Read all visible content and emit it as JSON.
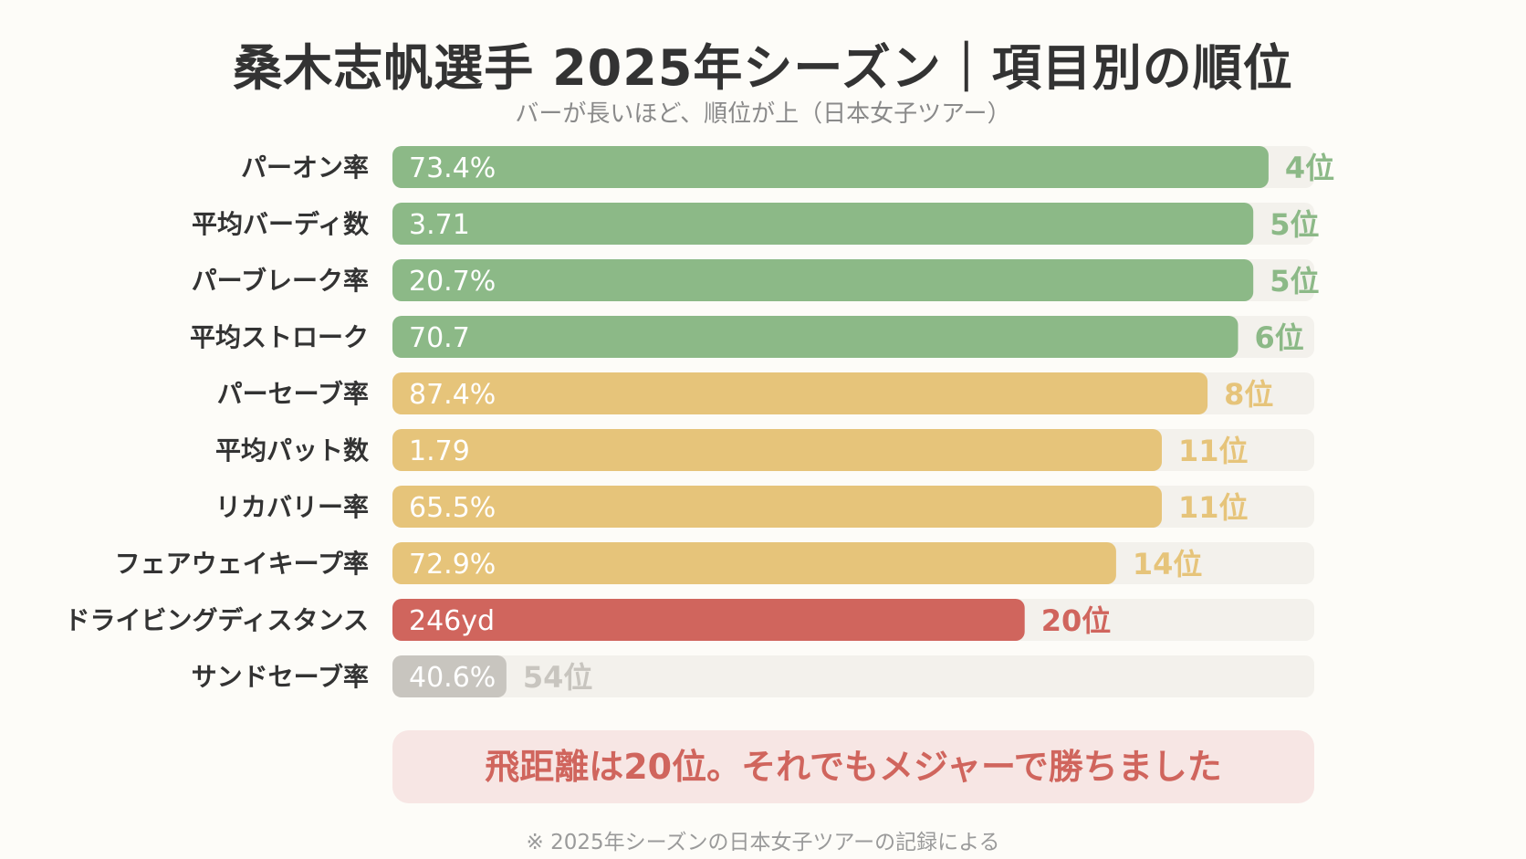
{
  "chart_data": {
    "type": "bar",
    "orientation": "horizontal",
    "title": "桑木志帆選手 2025年シーズン｜項目別の順位",
    "subtitle": "バーが長いほど、順位が上（日本女子ツアー）",
    "categories": [
      "パーオン率",
      "平均バーディ数",
      "パーブレーク率",
      "平均ストローク",
      "パーセーブ率",
      "平均パット数",
      "リカバリー率",
      "フェアウェイキープ率",
      "ドライビングディスタンス",
      "サンドセーブ率"
    ],
    "value_labels": [
      "73.4%",
      "3.71",
      "20.7%",
      "70.7",
      "87.4%",
      "1.79",
      "65.5%",
      "72.9%",
      "246yd",
      "40.6%"
    ],
    "ranks": [
      4,
      5,
      5,
      6,
      8,
      11,
      11,
      14,
      20,
      54
    ],
    "rank_labels": [
      "4位",
      "5位",
      "5位",
      "6位",
      "8位",
      "11位",
      "11位",
      "14位",
      "20位",
      "54位"
    ],
    "colors": [
      "#8cb987",
      "#8cb987",
      "#8cb987",
      "#8cb987",
      "#e6c47a",
      "#e6c47a",
      "#e6c47a",
      "#e6c47a",
      "#d0655d",
      "#c8c5bf"
    ],
    "track_color": "#f3f1ec",
    "legend": "none",
    "grid": false
  },
  "callout": "飛距離は20位。それでもメジャーで勝ちました",
  "note": "※ 2025年シーズンの日本女子ツアーの記録による"
}
